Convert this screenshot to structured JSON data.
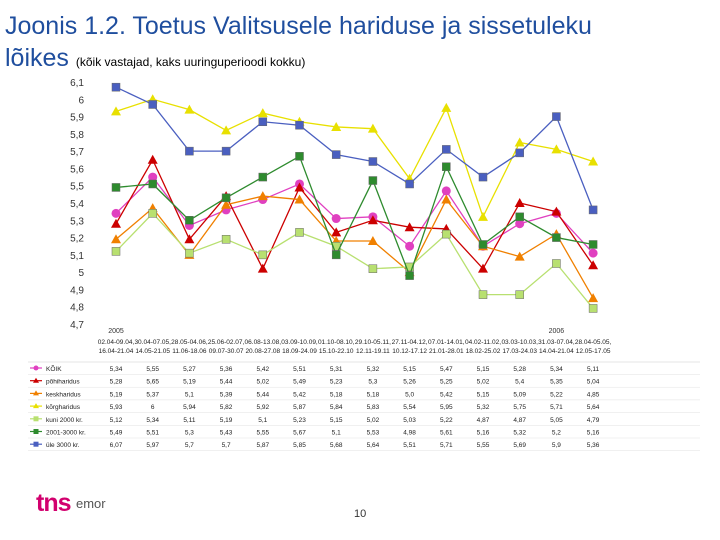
{
  "title": {
    "main": "Joonis 1.2. Toetus Valitsusele hariduse ja sissetuleku",
    "line2": "lõikes",
    "subtitle": "(kõik vastajad, kaks uuringuperioodi kokku)"
  },
  "page_number": "10",
  "logo": {
    "brand": "tns",
    "suffix": "emor"
  },
  "chart_data": {
    "type": "line",
    "y_range": [
      4.7,
      6.1
    ],
    "y_ticks": [
      "6,1",
      "6",
      "5,9",
      "5,8",
      "5,7",
      "5,6",
      "5,5",
      "5,4",
      "5,3",
      "5,2",
      "5,1",
      "5",
      "4,9",
      "4,8",
      "4,7"
    ],
    "year_labels": [
      {
        "index": 0,
        "label": "2005"
      },
      {
        "index": 12,
        "label": "2006"
      }
    ],
    "periods": [
      {
        "line1": "02.04-09.04,",
        "line2": "16.04-21.04"
      },
      {
        "line1": "30.04-07.05,",
        "line2": "14.05-21.05"
      },
      {
        "line1": "28.05-04.06,",
        "line2": "11.06-18.06"
      },
      {
        "line1": "25.06-02.07,",
        "line2": "09.07-30.07"
      },
      {
        "line1": "06.08-13.08,",
        "line2": "20.08-27.08"
      },
      {
        "line1": "03.09-10.09,",
        "line2": "18.09-24.09"
      },
      {
        "line1": "01.10-08.10,",
        "line2": "15.10-22.10"
      },
      {
        "line1": "29.10-05.11,",
        "line2": "12.11-19.11"
      },
      {
        "line1": "27.11-04.12,",
        "line2": "10.12-17.12"
      },
      {
        "line1": "07.01-14.01,",
        "line2": "21.01-28.01"
      },
      {
        "line1": "04.02-11.02,",
        "line2": "18.02-25.02"
      },
      {
        "line1": "03.03-10.03,",
        "line2": "17.03-24.03"
      },
      {
        "line1": "31.03-07.04,",
        "line2": "14.04-21.04"
      },
      {
        "line1": "28.04-05.05,",
        "line2": "12.05-17.05"
      }
    ],
    "series": [
      {
        "name": "KÕIK",
        "color": "#e040c0",
        "marker": "circle",
        "values": [
          5.34,
          5.55,
          5.27,
          5.36,
          5.42,
          5.51,
          5.31,
          5.32,
          5.15,
          5.47,
          5.15,
          5.28,
          5.34,
          5.11
        ],
        "labels": [
          "5,34",
          "5,55",
          "5,27",
          "5,36",
          "5,42",
          "5,51",
          "5,31",
          "5,32",
          "5,15",
          "5,47",
          "5,15",
          "5,28",
          "5,34",
          "5,11"
        ]
      },
      {
        "name": "põhiharidus",
        "color": "#cc0000",
        "marker": "triangle",
        "values": [
          5.28,
          5.65,
          5.19,
          5.44,
          5.02,
          5.49,
          5.23,
          5.3,
          5.26,
          5.25,
          5.02,
          5.4,
          5.35,
          5.04
        ],
        "labels": [
          "5,28",
          "5,65",
          "5,19",
          "5,44",
          "5,02",
          "5,49",
          "5,23",
          "5,3",
          "5,26",
          "5,25",
          "5,02",
          "5,4",
          "5,35",
          "5,04"
        ]
      },
      {
        "name": "keskharidus",
        "color": "#f08000",
        "marker": "triangle",
        "values": [
          5.19,
          5.37,
          5.1,
          5.39,
          5.44,
          5.42,
          5.18,
          5.18,
          5.0,
          5.42,
          5.15,
          5.09,
          5.22,
          4.85
        ],
        "labels": [
          "5,19",
          "5,37",
          "5,1",
          "5,39",
          "5,44",
          "5,42",
          "5,18",
          "5,18",
          "5,0",
          "5,42",
          "5,15",
          "5,09",
          "5,22",
          "4,85"
        ]
      },
      {
        "name": "kõrgharidus",
        "color": "#e8e000",
        "marker": "triangle",
        "values": [
          5.93,
          6.0,
          5.94,
          5.82,
          5.92,
          5.87,
          5.84,
          5.83,
          5.54,
          5.95,
          5.32,
          5.75,
          5.71,
          5.64
        ],
        "labels": [
          "5,93",
          "6",
          "5,94",
          "5,82",
          "5,92",
          "5,87",
          "5,84",
          "5,83",
          "5,54",
          "5,95",
          "5,32",
          "5,75",
          "5,71",
          "5,64"
        ]
      },
      {
        "name": "kuni 2000 kr.",
        "color": "#b8e070",
        "marker": "square",
        "values": [
          5.12,
          5.34,
          5.11,
          5.19,
          5.1,
          5.23,
          5.15,
          5.02,
          5.03,
          5.22,
          4.87,
          4.87,
          5.05,
          4.79
        ],
        "labels": [
          "5,12",
          "5,34",
          "5,11",
          "5,19",
          "5,1",
          "5,23",
          "5,15",
          "5,02",
          "5,03",
          "5,22",
          "4,87",
          "4,87",
          "5,05",
          "4,79"
        ]
      },
      {
        "name": "2001-3000 kr.",
        "color": "#2e8b2e",
        "marker": "square",
        "values": [
          5.49,
          5.51,
          5.3,
          5.43,
          5.55,
          5.67,
          5.1,
          5.53,
          4.98,
          5.61,
          5.16,
          5.32,
          5.2,
          5.16
        ],
        "labels": [
          "5,49",
          "5,51",
          "5,3",
          "5,43",
          "5,55",
          "5,67",
          "5,1",
          "5,53",
          "4,98",
          "5,61",
          "5,16",
          "5,32",
          "5,2",
          "5,16"
        ]
      },
      {
        "name": "üle 3000 kr.",
        "color": "#4a5fc0",
        "marker": "square",
        "values": [
          6.07,
          5.97,
          5.7,
          5.7,
          5.87,
          5.85,
          5.68,
          5.64,
          5.51,
          5.71,
          5.55,
          5.69,
          5.9,
          5.36
        ],
        "labels": [
          "6,07",
          "5,97",
          "5,7",
          "5,7",
          "5,87",
          "5,85",
          "5,68",
          "5,64",
          "5,51",
          "5,71",
          "5,55",
          "5,69",
          "5,9",
          "5,36"
        ]
      }
    ]
  }
}
